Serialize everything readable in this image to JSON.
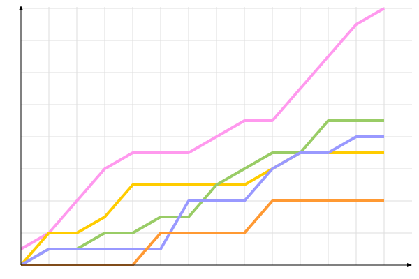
{
  "chart_data": {
    "type": "line",
    "x": [
      0,
      1,
      2,
      3,
      4,
      5,
      6,
      7,
      8,
      9,
      10,
      11,
      12,
      13
    ],
    "xlim": [
      0,
      14
    ],
    "ylim": [
      0,
      8
    ],
    "xticks": [
      1,
      2,
      3,
      4,
      5,
      6,
      7,
      8,
      9,
      10,
      11,
      12,
      13
    ],
    "yticks": [
      1,
      2,
      3,
      4,
      5,
      6,
      7,
      8
    ],
    "grid": true,
    "series": [
      {
        "color": "#ff99ee",
        "values": [
          0.5,
          1,
          2,
          3,
          3.5,
          3.5,
          3.5,
          4,
          4.5,
          4.5,
          5.5,
          6.5,
          7.5,
          8
        ]
      },
      {
        "color": "#ffcc00",
        "values": [
          0,
          1,
          1,
          1.5,
          2.5,
          2.5,
          2.5,
          2.5,
          2.5,
          3,
          3.5,
          3.5,
          3.5,
          3.5
        ]
      },
      {
        "color": "#99cc66",
        "values": [
          0,
          0.5,
          0.5,
          1,
          1,
          1.5,
          1.5,
          2.5,
          3,
          3.5,
          3.5,
          4.5,
          4.5,
          4.5
        ]
      },
      {
        "color": "#9999ff",
        "values": [
          0,
          0.5,
          0.5,
          0.5,
          0.5,
          0.5,
          2,
          2,
          2,
          3,
          3.5,
          3.5,
          4,
          4
        ]
      },
      {
        "color": "#ff9933",
        "values": [
          0,
          0,
          0,
          0,
          0,
          1,
          1,
          1,
          1,
          2,
          2,
          2,
          2,
          2
        ]
      }
    ]
  }
}
